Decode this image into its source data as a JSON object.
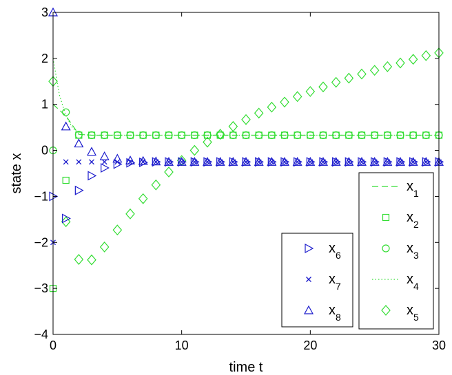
{
  "chart_data": {
    "type": "scatter",
    "xlabel": "time t",
    "ylabel": "state x",
    "xlim": [
      0,
      30
    ],
    "ylim": [
      -4,
      3
    ],
    "x_ticks": [
      0,
      10,
      20,
      30
    ],
    "y_ticks": [
      -4,
      -3,
      -2,
      -1,
      0,
      1,
      2,
      3
    ],
    "y_tick_labels": [
      "−4",
      "−3",
      "−2",
      "−1",
      "0",
      "1",
      "2",
      "3"
    ],
    "grid": false,
    "legends": [
      {
        "placement": "bottom-right",
        "entries": [
          "x1",
          "x2",
          "x3",
          "x4",
          "x5"
        ]
      },
      {
        "placement": "bottom-center-right",
        "entries": [
          "x6",
          "x7",
          "x8"
        ]
      }
    ],
    "colors": {
      "green": "#33dd33",
      "blue": "#1a1acc"
    },
    "series": [
      {
        "name": "x1",
        "label": "x",
        "sub": "1",
        "color": "#33dd33",
        "marker": "dash",
        "line": "dashed",
        "x": [
          0,
          1,
          2,
          3,
          4,
          5,
          6,
          7,
          8,
          9,
          10,
          11,
          12,
          13,
          14,
          15,
          16,
          17,
          18,
          19,
          20,
          21,
          22,
          23,
          24,
          25,
          26,
          27,
          28,
          29,
          30
        ],
        "y": [
          1.0,
          0.75,
          0.35,
          0.33,
          0.33,
          0.33,
          0.33,
          0.33,
          0.33,
          0.33,
          0.33,
          0.33,
          0.33,
          0.33,
          0.33,
          0.33,
          0.33,
          0.33,
          0.33,
          0.33,
          0.33,
          0.33,
          0.33,
          0.33,
          0.33,
          0.33,
          0.33,
          0.33,
          0.33,
          0.33,
          0.33
        ]
      },
      {
        "name": "x2",
        "label": "x",
        "sub": "2",
        "color": "#33dd33",
        "marker": "square",
        "line": "none",
        "x": [
          0,
          1,
          2,
          3,
          4,
          5,
          6,
          7,
          8,
          9,
          10,
          11,
          12,
          13,
          14,
          15,
          16,
          17,
          18,
          19,
          20,
          21,
          22,
          23,
          24,
          25,
          26,
          27,
          28,
          29,
          30
        ],
        "y": [
          -3.0,
          -0.65,
          0.33,
          0.33,
          0.33,
          0.33,
          0.33,
          0.33,
          0.33,
          0.33,
          0.33,
          0.33,
          0.33,
          0.33,
          0.33,
          0.33,
          0.33,
          0.33,
          0.33,
          0.33,
          0.33,
          0.33,
          0.33,
          0.33,
          0.33,
          0.33,
          0.33,
          0.33,
          0.33,
          0.33,
          0.33
        ]
      },
      {
        "name": "x3",
        "label": "x",
        "sub": "3",
        "color": "#33dd33",
        "marker": "circle",
        "line": "none",
        "x": [
          0,
          1,
          2,
          3,
          4,
          5,
          6,
          7,
          8,
          9,
          10,
          11,
          12,
          13,
          14,
          15,
          16,
          17,
          18,
          19,
          20,
          21,
          22,
          23,
          24,
          25,
          26,
          27,
          28,
          29,
          30
        ],
        "y": [
          0.0,
          0.83,
          0.34,
          0.33,
          0.33,
          0.33,
          0.33,
          0.33,
          0.33,
          0.33,
          0.33,
          0.33,
          0.33,
          0.33,
          0.33,
          0.33,
          0.33,
          0.33,
          0.33,
          0.33,
          0.33,
          0.33,
          0.33,
          0.33,
          0.33,
          0.33,
          0.33,
          0.33,
          0.33,
          0.33,
          0.33
        ]
      },
      {
        "name": "x4",
        "label": "x",
        "sub": "4",
        "color": "#33dd33",
        "marker": "none",
        "line": "dotted",
        "x": [
          0,
          0.5,
          1,
          1.5,
          2,
          3,
          4,
          5,
          10,
          20,
          30
        ],
        "y": [
          2.0,
          1.2,
          0.75,
          0.5,
          0.35,
          0.33,
          0.33,
          0.33,
          0.33,
          0.33,
          0.33
        ]
      },
      {
        "name": "x5",
        "label": "x",
        "sub": "5",
        "color": "#33dd33",
        "marker": "diamond",
        "line": "none",
        "x": [
          0,
          1,
          2,
          3,
          4,
          5,
          6,
          7,
          8,
          9,
          10,
          11,
          12,
          13,
          14,
          15,
          16,
          17,
          18,
          19,
          20,
          21,
          22,
          23,
          24,
          25,
          26,
          27,
          28,
          29,
          30
        ],
        "y": [
          1.5,
          -1.55,
          -2.37,
          -2.38,
          -2.1,
          -1.73,
          -1.38,
          -1.05,
          -0.75,
          -0.47,
          -0.22,
          0.0,
          0.18,
          0.35,
          0.52,
          0.67,
          0.81,
          0.94,
          1.05,
          1.17,
          1.28,
          1.38,
          1.48,
          1.57,
          1.66,
          1.74,
          1.82,
          1.9,
          1.98,
          2.06,
          2.12
        ]
      },
      {
        "name": "x6",
        "label": "x",
        "sub": "6",
        "color": "#1a1acc",
        "marker": "triangle-right",
        "line": "none",
        "x": [
          0,
          1,
          2,
          3,
          4,
          5,
          6,
          7,
          8,
          9,
          10,
          11,
          12,
          13,
          14,
          15,
          16,
          17,
          18,
          19,
          20,
          21,
          22,
          23,
          24,
          25,
          26,
          27,
          28,
          29,
          30
        ],
        "y": [
          -1.0,
          -1.48,
          -0.87,
          -0.55,
          -0.38,
          -0.3,
          -0.27,
          -0.26,
          -0.25,
          -0.25,
          -0.25,
          -0.25,
          -0.25,
          -0.25,
          -0.25,
          -0.25,
          -0.25,
          -0.25,
          -0.25,
          -0.25,
          -0.25,
          -0.25,
          -0.25,
          -0.25,
          -0.25,
          -0.25,
          -0.25,
          -0.25,
          -0.25,
          -0.25,
          -0.25
        ]
      },
      {
        "name": "x7",
        "label": "x",
        "sub": "7",
        "color": "#1a1acc",
        "marker": "x",
        "line": "none",
        "x": [
          0,
          1,
          2,
          3,
          4,
          5,
          6,
          7,
          8,
          9,
          10,
          11,
          12,
          13,
          14,
          15,
          16,
          17,
          18,
          19,
          20,
          21,
          22,
          23,
          24,
          25,
          26,
          27,
          28,
          29,
          30
        ],
        "y": [
          -2.0,
          -0.25,
          -0.25,
          -0.25,
          -0.25,
          -0.25,
          -0.25,
          -0.25,
          -0.25,
          -0.25,
          -0.25,
          -0.25,
          -0.25,
          -0.25,
          -0.25,
          -0.25,
          -0.25,
          -0.25,
          -0.25,
          -0.25,
          -0.25,
          -0.25,
          -0.25,
          -0.25,
          -0.25,
          -0.25,
          -0.25,
          -0.25,
          -0.25,
          -0.25,
          -0.25
        ]
      },
      {
        "name": "x8",
        "label": "x",
        "sub": "8",
        "color": "#1a1acc",
        "marker": "triangle-up",
        "line": "none",
        "x": [
          0,
          1,
          2,
          3,
          4,
          5,
          6,
          7,
          8,
          9,
          10,
          11,
          12,
          13,
          14,
          15,
          16,
          17,
          18,
          19,
          20,
          21,
          22,
          23,
          24,
          25,
          26,
          27,
          28,
          29,
          30
        ],
        "y": [
          3.0,
          0.52,
          0.15,
          -0.03,
          -0.13,
          -0.18,
          -0.22,
          -0.23,
          -0.24,
          -0.25,
          -0.25,
          -0.25,
          -0.25,
          -0.25,
          -0.25,
          -0.25,
          -0.25,
          -0.25,
          -0.25,
          -0.25,
          -0.25,
          -0.25,
          -0.25,
          -0.25,
          -0.25,
          -0.25,
          -0.25,
          -0.25,
          -0.25,
          -0.25,
          -0.25
        ]
      }
    ]
  }
}
